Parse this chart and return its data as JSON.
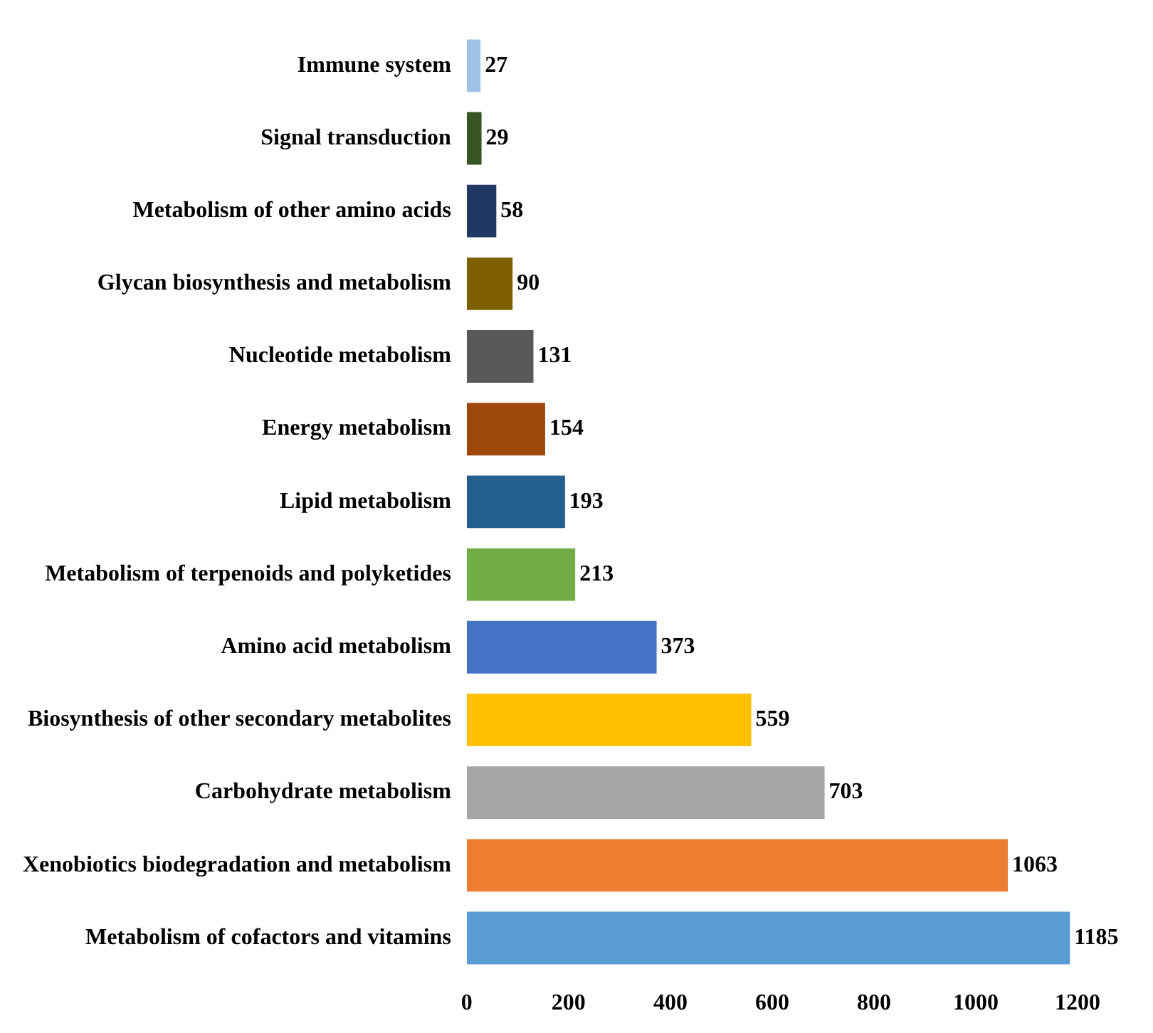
{
  "chart_data": {
    "type": "bar",
    "orientation": "horizontal",
    "categories": [
      "Immune system",
      "Signal transduction",
      "Metabolism of other amino acids",
      "Glycan biosynthesis and metabolism",
      "Nucleotide metabolism",
      "Energy metabolism",
      "Lipid metabolism",
      "Metabolism of terpenoids and polyketides",
      "Amino acid metabolism",
      "Biosynthesis of other secondary metabolites",
      "Carbohydrate metabolism",
      "Xenobiotics biodegradation and metabolism",
      "Metabolism of cofactors and vitamins"
    ],
    "values": [
      27,
      29,
      58,
      90,
      131,
      154,
      193,
      213,
      373,
      559,
      703,
      1063,
      1185
    ],
    "colors": [
      "#9dc3e6",
      "#375623",
      "#1f3864",
      "#7f6000",
      "#595959",
      "#9e480e",
      "#255e91",
      "#70ad47",
      "#4472c4",
      "#ffc000",
      "#a5a5a5",
      "#ed7d31",
      "#5b9bd5"
    ],
    "xlim": [
      0,
      1200
    ],
    "xticks": [
      0,
      200,
      400,
      600,
      800,
      1000,
      1200
    ],
    "data_labels": true,
    "grid": false
  }
}
